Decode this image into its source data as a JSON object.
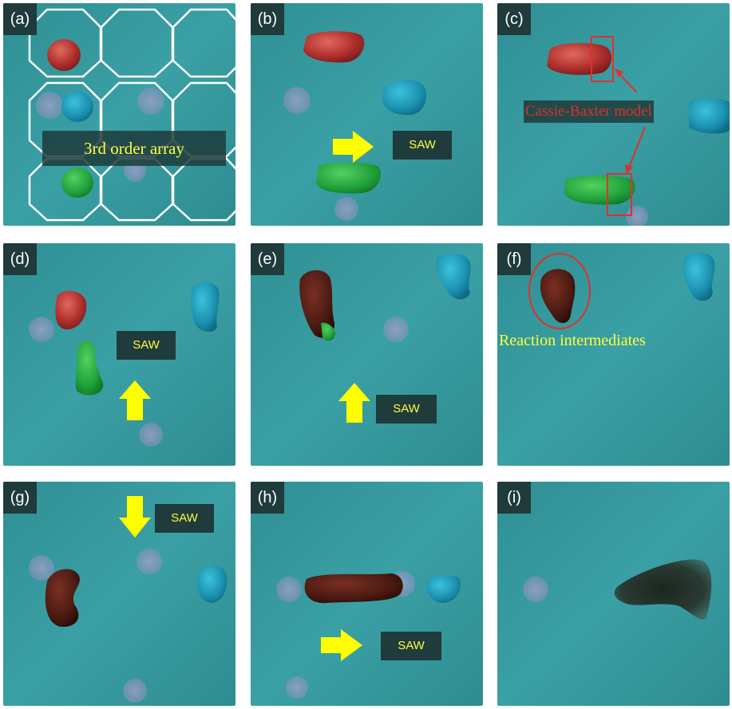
{
  "panels": [
    {
      "id": "a",
      "label": "(a)"
    },
    {
      "id": "b",
      "label": "(b)"
    },
    {
      "id": "c",
      "label": "(c)"
    },
    {
      "id": "d",
      "label": "(d)"
    },
    {
      "id": "e",
      "label": "(e)"
    },
    {
      "id": "f",
      "label": "(f)"
    },
    {
      "id": "g",
      "label": "(g)"
    },
    {
      "id": "h",
      "label": "(h)"
    },
    {
      "id": "i",
      "label": "(i)"
    }
  ],
  "annotations": {
    "array_label": "3rd order array",
    "saw_label": "SAW",
    "model_label": "Cassie-Baxter model",
    "intermediates_label": "Reaction intermediates"
  },
  "colors": {
    "background_teal": "#3a9ea2",
    "label_box": "#1f3b3b",
    "arrow_yellow": "#ffff00",
    "annotation_red": "#e0302a",
    "droplet_red": "#b63a37",
    "droplet_blue": "#1a8fae",
    "droplet_green": "#1fa03a",
    "droplet_brown": "#4a1a12",
    "droplet_dark": "#23302a"
  }
}
